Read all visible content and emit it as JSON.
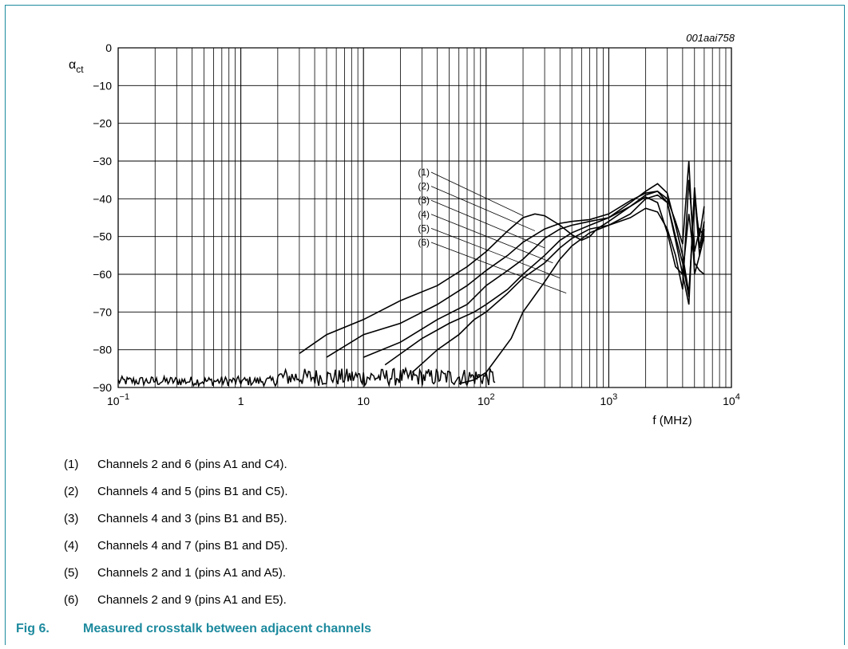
{
  "figure_id": "001aai758",
  "caption": {
    "number": "Fig 6.",
    "title": "Measured crosstalk between adjacent channels"
  },
  "legend_notes": [
    {
      "num": "(1)",
      "text": "Channels 2 and 6 (pins A1 and C4)."
    },
    {
      "num": "(2)",
      "text": "Channels 4 and 5 (pins B1 and C5)."
    },
    {
      "num": "(3)",
      "text": "Channels 4 and 3 (pins B1 and B5)."
    },
    {
      "num": "(4)",
      "text": "Channels 4 and 7 (pins B1 and D5)."
    },
    {
      "num": "(5)",
      "text": "Channels 2 and 1 (pins A1 and A5)."
    },
    {
      "num": "(6)",
      "text": "Channels 2 and 9 (pins A1 and E5)."
    }
  ],
  "colors": {
    "accent": "#1d8a9e",
    "line": "#000000"
  },
  "chart_data": {
    "type": "line",
    "title": "",
    "xlabel": "f (MHz)",
    "ylabel_main": "α",
    "ylabel_sub": "ct",
    "xscale": "log",
    "xlim": [
      0.1,
      10000
    ],
    "ylim": [
      -90,
      0
    ],
    "grid": true,
    "x_ticks": [
      {
        "value": 0.1,
        "base": "10",
        "exp": "−1"
      },
      {
        "value": 1,
        "base": "1",
        "exp": ""
      },
      {
        "value": 10,
        "base": "10",
        "exp": ""
      },
      {
        "value": 100,
        "base": "10",
        "exp": "2"
      },
      {
        "value": 1000,
        "base": "10",
        "exp": "3"
      },
      {
        "value": 10000,
        "base": "10",
        "exp": "4"
      }
    ],
    "y_ticks": [
      {
        "value": 0,
        "label": "0"
      },
      {
        "value": -10,
        "label": "−10"
      },
      {
        "value": -20,
        "label": "−20"
      },
      {
        "value": -30,
        "label": "−30"
      },
      {
        "value": -40,
        "label": "−40"
      },
      {
        "value": -50,
        "label": "−50"
      },
      {
        "value": -60,
        "label": "−60"
      },
      {
        "value": -70,
        "label": "−70"
      },
      {
        "value": -80,
        "label": "−80"
      },
      {
        "value": -90,
        "label": "−90"
      }
    ],
    "series": [
      {
        "name": "(1)",
        "label_at": {
          "x": 200,
          "y": -44.5
        },
        "x": [
          3,
          5,
          10,
          20,
          40,
          70,
          100,
          150,
          200,
          250,
          300,
          400,
          500,
          600,
          700,
          800,
          1000,
          1500,
          2000,
          2500,
          3000,
          3500,
          4000,
          4500,
          5000,
          5500,
          6000
        ],
        "y": [
          -81,
          -76,
          -72,
          -67,
          -63,
          -58,
          -54,
          -48.5,
          -45,
          -44,
          -44.5,
          -47,
          -49.5,
          -51,
          -50,
          -48,
          -46,
          -42,
          -39.5,
          -41,
          -49,
          -58,
          -60,
          -44,
          -57,
          -59,
          -60
        ]
      },
      {
        "name": "(2)",
        "label_at": {
          "x": 250,
          "y": -48.5
        },
        "x": [
          5,
          10,
          20,
          40,
          70,
          100,
          150,
          200,
          300,
          400,
          500,
          700,
          1000,
          1500,
          2000,
          2500,
          3000,
          3500,
          4000,
          4500,
          5000,
          5500,
          6000
        ],
        "y": [
          -82,
          -76,
          -73,
          -68,
          -63,
          -59,
          -55,
          -51.5,
          -48,
          -46.5,
          -46,
          -45.5,
          -44,
          -40.5,
          -38.5,
          -38,
          -40,
          -46,
          -52,
          -30,
          -60,
          -55,
          -48
        ]
      },
      {
        "name": "(3)",
        "label_at": {
          "x": 300,
          "y": -53
        },
        "x": [
          10,
          20,
          40,
          70,
          100,
          150,
          200,
          300,
          400,
          500,
          700,
          1000,
          1500,
          2000,
          2500,
          3000,
          3500,
          4000,
          4500,
          5000,
          5500,
          6000
        ],
        "y": [
          -82,
          -78,
          -72,
          -68,
          -63,
          -59,
          -56,
          -50.5,
          -48,
          -47,
          -46,
          -45,
          -41,
          -38,
          -36,
          -38.5,
          -47,
          -55,
          -65,
          -40,
          -50,
          -42
        ]
      },
      {
        "name": "(4)",
        "label_at": {
          "x": 350,
          "y": -57
        },
        "x": [
          15,
          30,
          50,
          80,
          100,
          150,
          200,
          300,
          400,
          500,
          700,
          1000,
          1500,
          2000,
          2500,
          3000,
          3500,
          4000,
          4500,
          5000,
          5500,
          6000
        ],
        "y": [
          -84,
          -77,
          -73,
          -70,
          -68,
          -64,
          -60,
          -55,
          -51,
          -49,
          -47,
          -45,
          -42,
          -39,
          -38,
          -41,
          -50,
          -57,
          -66,
          -38,
          -55,
          -50
        ]
      },
      {
        "name": "(5)",
        "label_at": {
          "x": 400,
          "y": -61
        },
        "x": [
          25,
          40,
          60,
          80,
          100,
          150,
          200,
          300,
          400,
          500,
          700,
          1000,
          1500,
          2000,
          2500,
          3000,
          3500,
          4000,
          4500,
          5000,
          5500,
          6000
        ],
        "y": [
          -86,
          -80,
          -76,
          -72,
          -70,
          -65,
          -61,
          -57,
          -53,
          -50.5,
          -48,
          -47,
          -44,
          -40,
          -39,
          -41,
          -51,
          -60,
          -68,
          -37,
          -53,
          -46
        ]
      },
      {
        "name": "(6)",
        "label_at": {
          "x": 450,
          "y": -65
        },
        "x": [
          60,
          80,
          100,
          130,
          160,
          200,
          300,
          400,
          500,
          700,
          1000,
          1500,
          2000,
          2500,
          3000,
          3500,
          4000,
          4500,
          5000,
          5500,
          6000
        ],
        "y": [
          -89,
          -88,
          -86,
          -81,
          -77,
          -70,
          -62,
          -56,
          -52.5,
          -49,
          -47,
          -45,
          -42.5,
          -43.5,
          -48,
          -55,
          -64,
          -35,
          -54,
          -48,
          -50
        ]
      }
    ]
  }
}
